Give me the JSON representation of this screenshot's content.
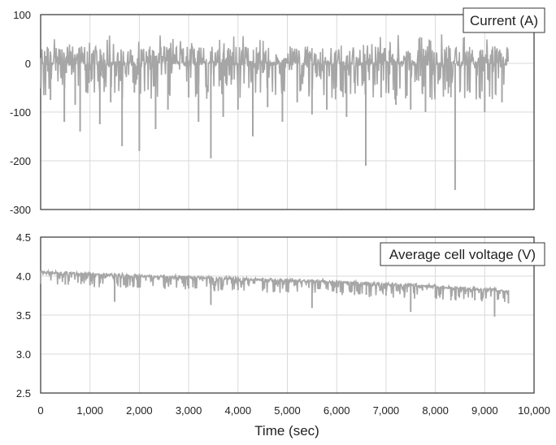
{
  "chart_data": [
    {
      "type": "line",
      "legend_label": "Current (A)",
      "legend_position": "top-right",
      "ylim": [
        -300,
        100
      ],
      "y_ticks": [
        100,
        0,
        -100,
        -200,
        -300
      ],
      "xlim": [
        0,
        10000
      ],
      "grid": true,
      "line_color": "#a6a6a6",
      "series": [
        {
          "x": [
            0,
            200,
            400,
            480,
            520,
            700,
            800,
            980,
            1200,
            1420,
            1650,
            1900,
            2000,
            2330,
            2580,
            3000,
            3200,
            3450,
            3700,
            4000,
            4300,
            4600,
            4900,
            5200,
            5500,
            5800,
            6200,
            6590,
            6900,
            7200,
            7500,
            7800,
            8100,
            8400,
            8700,
            9000,
            9350,
            9480
          ],
          "y": [
            0,
            -75,
            5,
            -120,
            -20,
            -85,
            -140,
            -40,
            -125,
            -80,
            -170,
            -60,
            -180,
            -135,
            -95,
            -70,
            -120,
            -195,
            -110,
            -95,
            -150,
            -90,
            -120,
            -80,
            -105,
            -95,
            -110,
            -210,
            -70,
            -85,
            -95,
            -100,
            -30,
            -260,
            -60,
            -100,
            -80,
            0
          ]
        }
      ]
    },
    {
      "type": "line",
      "legend_label": "Average cell voltage (V)",
      "legend_position": "top-right",
      "ylim": [
        2.5,
        4.5
      ],
      "y_ticks": [
        4.5,
        4.0,
        3.5,
        3.0,
        2.5
      ],
      "xlim": [
        0,
        10000
      ],
      "x_ticks": [
        0,
        1000,
        2000,
        3000,
        4000,
        5000,
        6000,
        7000,
        8000,
        9000,
        10000
      ],
      "x_tick_labels": [
        "0",
        "1,000",
        "2,000",
        "3,000",
        "4,000",
        "5,000",
        "6,000",
        "7,000",
        "8,000",
        "9,000",
        "10,000"
      ],
      "xlabel": "Time (sec)",
      "grid": true,
      "line_color": "#a6a6a6",
      "series": [
        {
          "x": [
            0,
            500,
            1000,
            1500,
            2000,
            2500,
            3000,
            3450,
            4000,
            4500,
            5000,
            5500,
            6000,
            6600,
            7000,
            7500,
            8000,
            8400,
            8800,
            9200,
            9480
          ],
          "y": [
            4.05,
            4.04,
            4.03,
            4.02,
            4.01,
            4.0,
            3.99,
            3.98,
            3.97,
            3.96,
            3.95,
            3.94,
            3.93,
            3.91,
            3.9,
            3.89,
            3.87,
            3.85,
            3.84,
            3.83,
            3.8
          ]
        }
      ]
    }
  ]
}
